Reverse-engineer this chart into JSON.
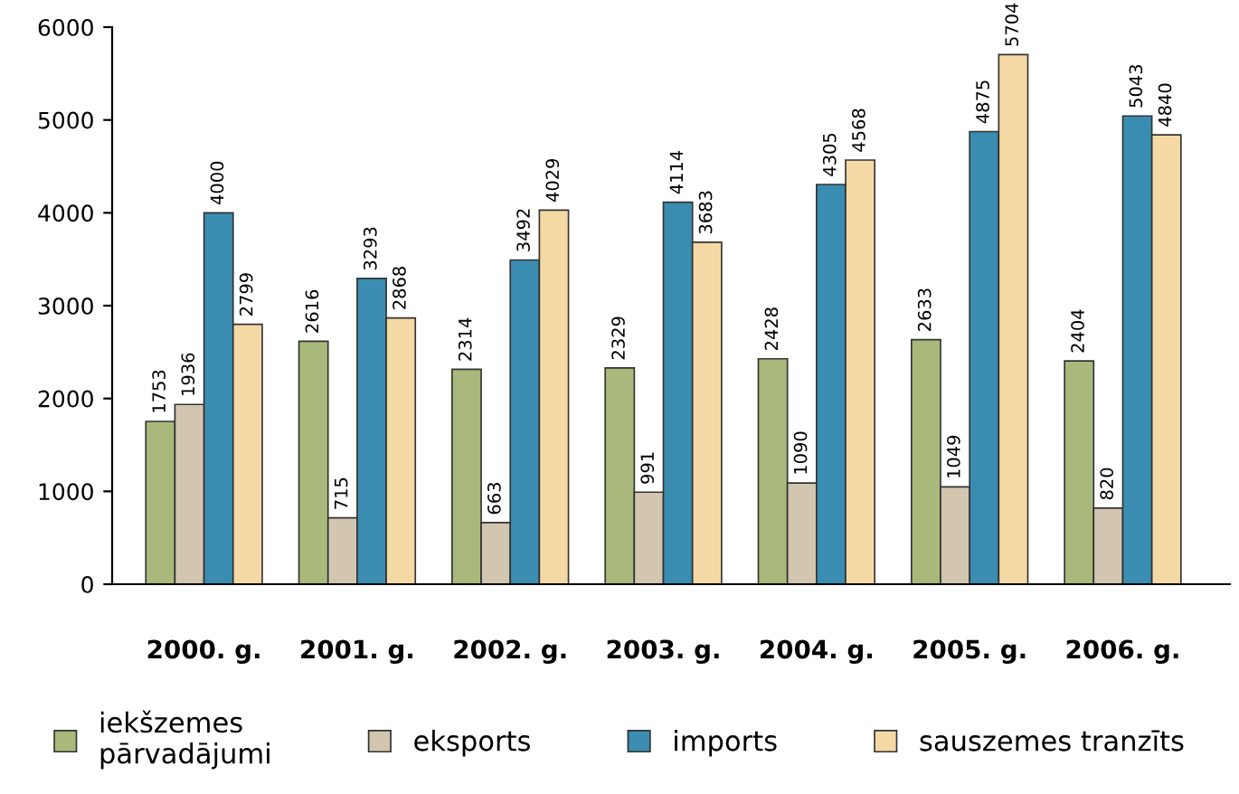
{
  "chart_data": {
    "type": "bar",
    "categories": [
      "2000. g.",
      "2001. g.",
      "2002. g.",
      "2003. g.",
      "2004. g.",
      "2005. g.",
      "2006. g."
    ],
    "series": [
      {
        "name": "iekšzemes\npārvadājumi",
        "color": "#a9b97b",
        "values": [
          1753,
          2616,
          2314,
          2329,
          2428,
          2633,
          2404
        ]
      },
      {
        "name": "eksports",
        "color": "#d2c6b0",
        "values": [
          1936,
          715,
          663,
          991,
          1090,
          1049,
          820
        ]
      },
      {
        "name": "imports",
        "color": "#3a8db0",
        "values": [
          4000,
          3293,
          3492,
          4114,
          4305,
          4875,
          5043
        ]
      },
      {
        "name": "sauszemes tranzīts",
        "color": "#f4d9a5",
        "values": [
          2799,
          2868,
          4029,
          3683,
          4568,
          5704,
          4840
        ]
      }
    ],
    "ylim": [
      0,
      6000
    ],
    "yticks": [
      0,
      1000,
      2000,
      3000,
      4000,
      5000,
      6000
    ],
    "data_labels": true,
    "grid": false,
    "legend": "bottom"
  }
}
